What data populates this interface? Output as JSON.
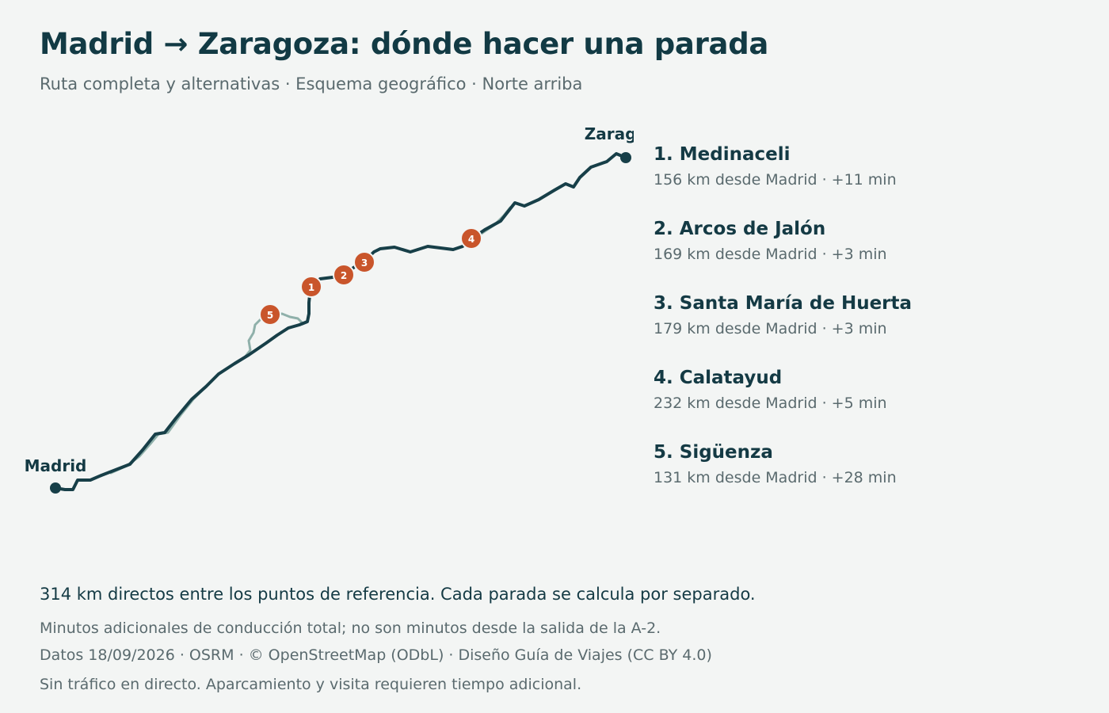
{
  "header": {
    "title": "Madrid → Zaragoza: dónde hacer una parada",
    "subtitle": "Ruta completa y alternativas · Esquema geográfico · Norte arriba"
  },
  "map": {
    "origin_label": "Madrid",
    "destination_label": "Zaragoza",
    "route_color": "#173f48",
    "alternative_color": "#8fb0aa",
    "marker_color": "#c9552b"
  },
  "stops": [
    {
      "number": "1",
      "name": "1. Medinaceli",
      "meta": "156 km desde Madrid · +11 min"
    },
    {
      "number": "2",
      "name": "2. Arcos de Jalón",
      "meta": "169 km desde Madrid · +3 min"
    },
    {
      "number": "3",
      "name": "3. Santa María de Huerta",
      "meta": "179 km desde Madrid · +3 min"
    },
    {
      "number": "4",
      "name": "4. Calatayud",
      "meta": "232 km desde Madrid · +5 min"
    },
    {
      "number": "5",
      "name": "5. Sigüenza",
      "meta": "131 km desde Madrid · +28 min"
    }
  ],
  "footer": {
    "summary": "314 km directos entre los puntos de referencia. Cada parada se calcula por separado.",
    "note_minutes": "Minutos adicionales de conducción total; no son minutos desde la salida de la A-2.",
    "credits": "Datos 18/09/2026 · OSRM · © OpenStreetMap (ODbL) · Diseño Guía de Viajes (CC BY 4.0)",
    "disclaimer": "Sin tráfico en directo. Aparcamiento y visita requieren tiempo adicional."
  }
}
